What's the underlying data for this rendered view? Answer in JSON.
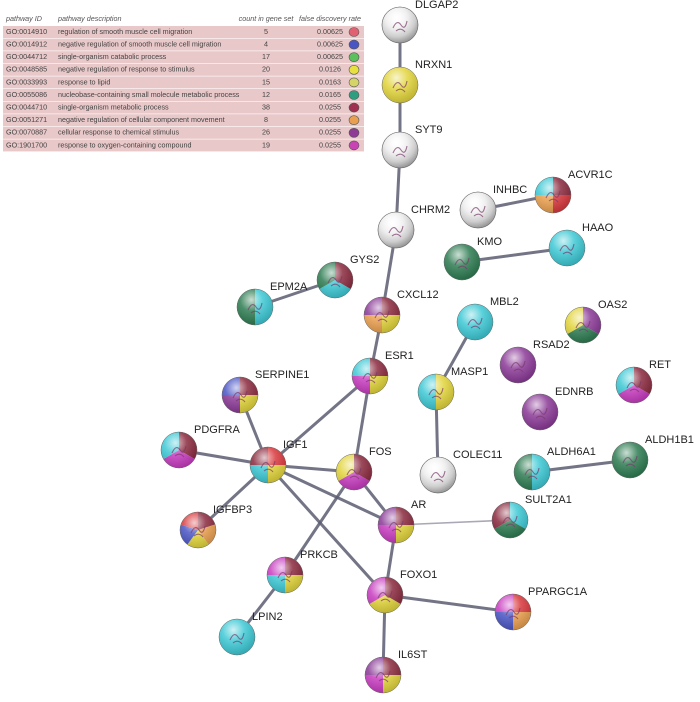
{
  "table": {
    "header": [
      "pathway ID",
      "pathway description",
      "count in gene set",
      "false discovery rate"
    ],
    "rows": [
      [
        "GO:0014910",
        "regulation of smooth muscle cell migration",
        "5",
        "0.00625"
      ],
      [
        "GO:0014912",
        "negative regulation of smooth muscle cell migration",
        "4",
        "0.00625"
      ],
      [
        "GO:0044712",
        "single-organism catabolic process",
        "17",
        "0.00625"
      ],
      [
        "GO:0048585",
        "negative regulation of response to stimulus",
        "20",
        "0.0126"
      ],
      [
        "GO:0033993",
        "response to lipid",
        "15",
        "0.0163"
      ],
      [
        "GO:0055086",
        "nucleobase-containing small molecule metabolic process",
        "12",
        "0.0165"
      ],
      [
        "GO:0044710",
        "single-organism metabolic process",
        "38",
        "0.0255"
      ],
      [
        "GO:0051271",
        "negative regulation of cellular component movement",
        "8",
        "0.0255"
      ],
      [
        "GO:0070887",
        "cellular response to chemical stimulus",
        "26",
        "0.0255"
      ],
      [
        "GO:1901700",
        "response to oxygen-containing compound",
        "19",
        "0.0255"
      ]
    ]
  },
  "nodes": [
    {
      "label": "DLGAP2"
    },
    {
      "label": "NRXN1"
    },
    {
      "label": "SYT9"
    },
    {
      "label": "CHRM2"
    },
    {
      "label": "INHBC"
    },
    {
      "label": "ACVR1C"
    },
    {
      "label": "KMO"
    },
    {
      "label": "HAAO"
    },
    {
      "label": "GYS2"
    },
    {
      "label": "EPM2A"
    },
    {
      "label": "CXCL12"
    },
    {
      "label": "MBL2"
    },
    {
      "label": "OAS2"
    },
    {
      "label": "RSAD2"
    },
    {
      "label": "SERPINE1"
    },
    {
      "label": "ESR1"
    },
    {
      "label": "MASP1"
    },
    {
      "label": "EDNRB"
    },
    {
      "label": "RET"
    },
    {
      "label": "PDGFRA"
    },
    {
      "label": "IGF1"
    },
    {
      "label": "FOS"
    },
    {
      "label": "COLEC11"
    },
    {
      "label": "ALDH6A1"
    },
    {
      "label": "ALDH1B1"
    },
    {
      "label": "IGFBP3"
    },
    {
      "label": "AR"
    },
    {
      "label": "SULT2A1"
    },
    {
      "label": "PRKCB"
    },
    {
      "label": "FOXO1"
    },
    {
      "label": "PPARGC1A"
    },
    {
      "label": "LPIN2"
    },
    {
      "label": "IL6ST"
    }
  ]
}
